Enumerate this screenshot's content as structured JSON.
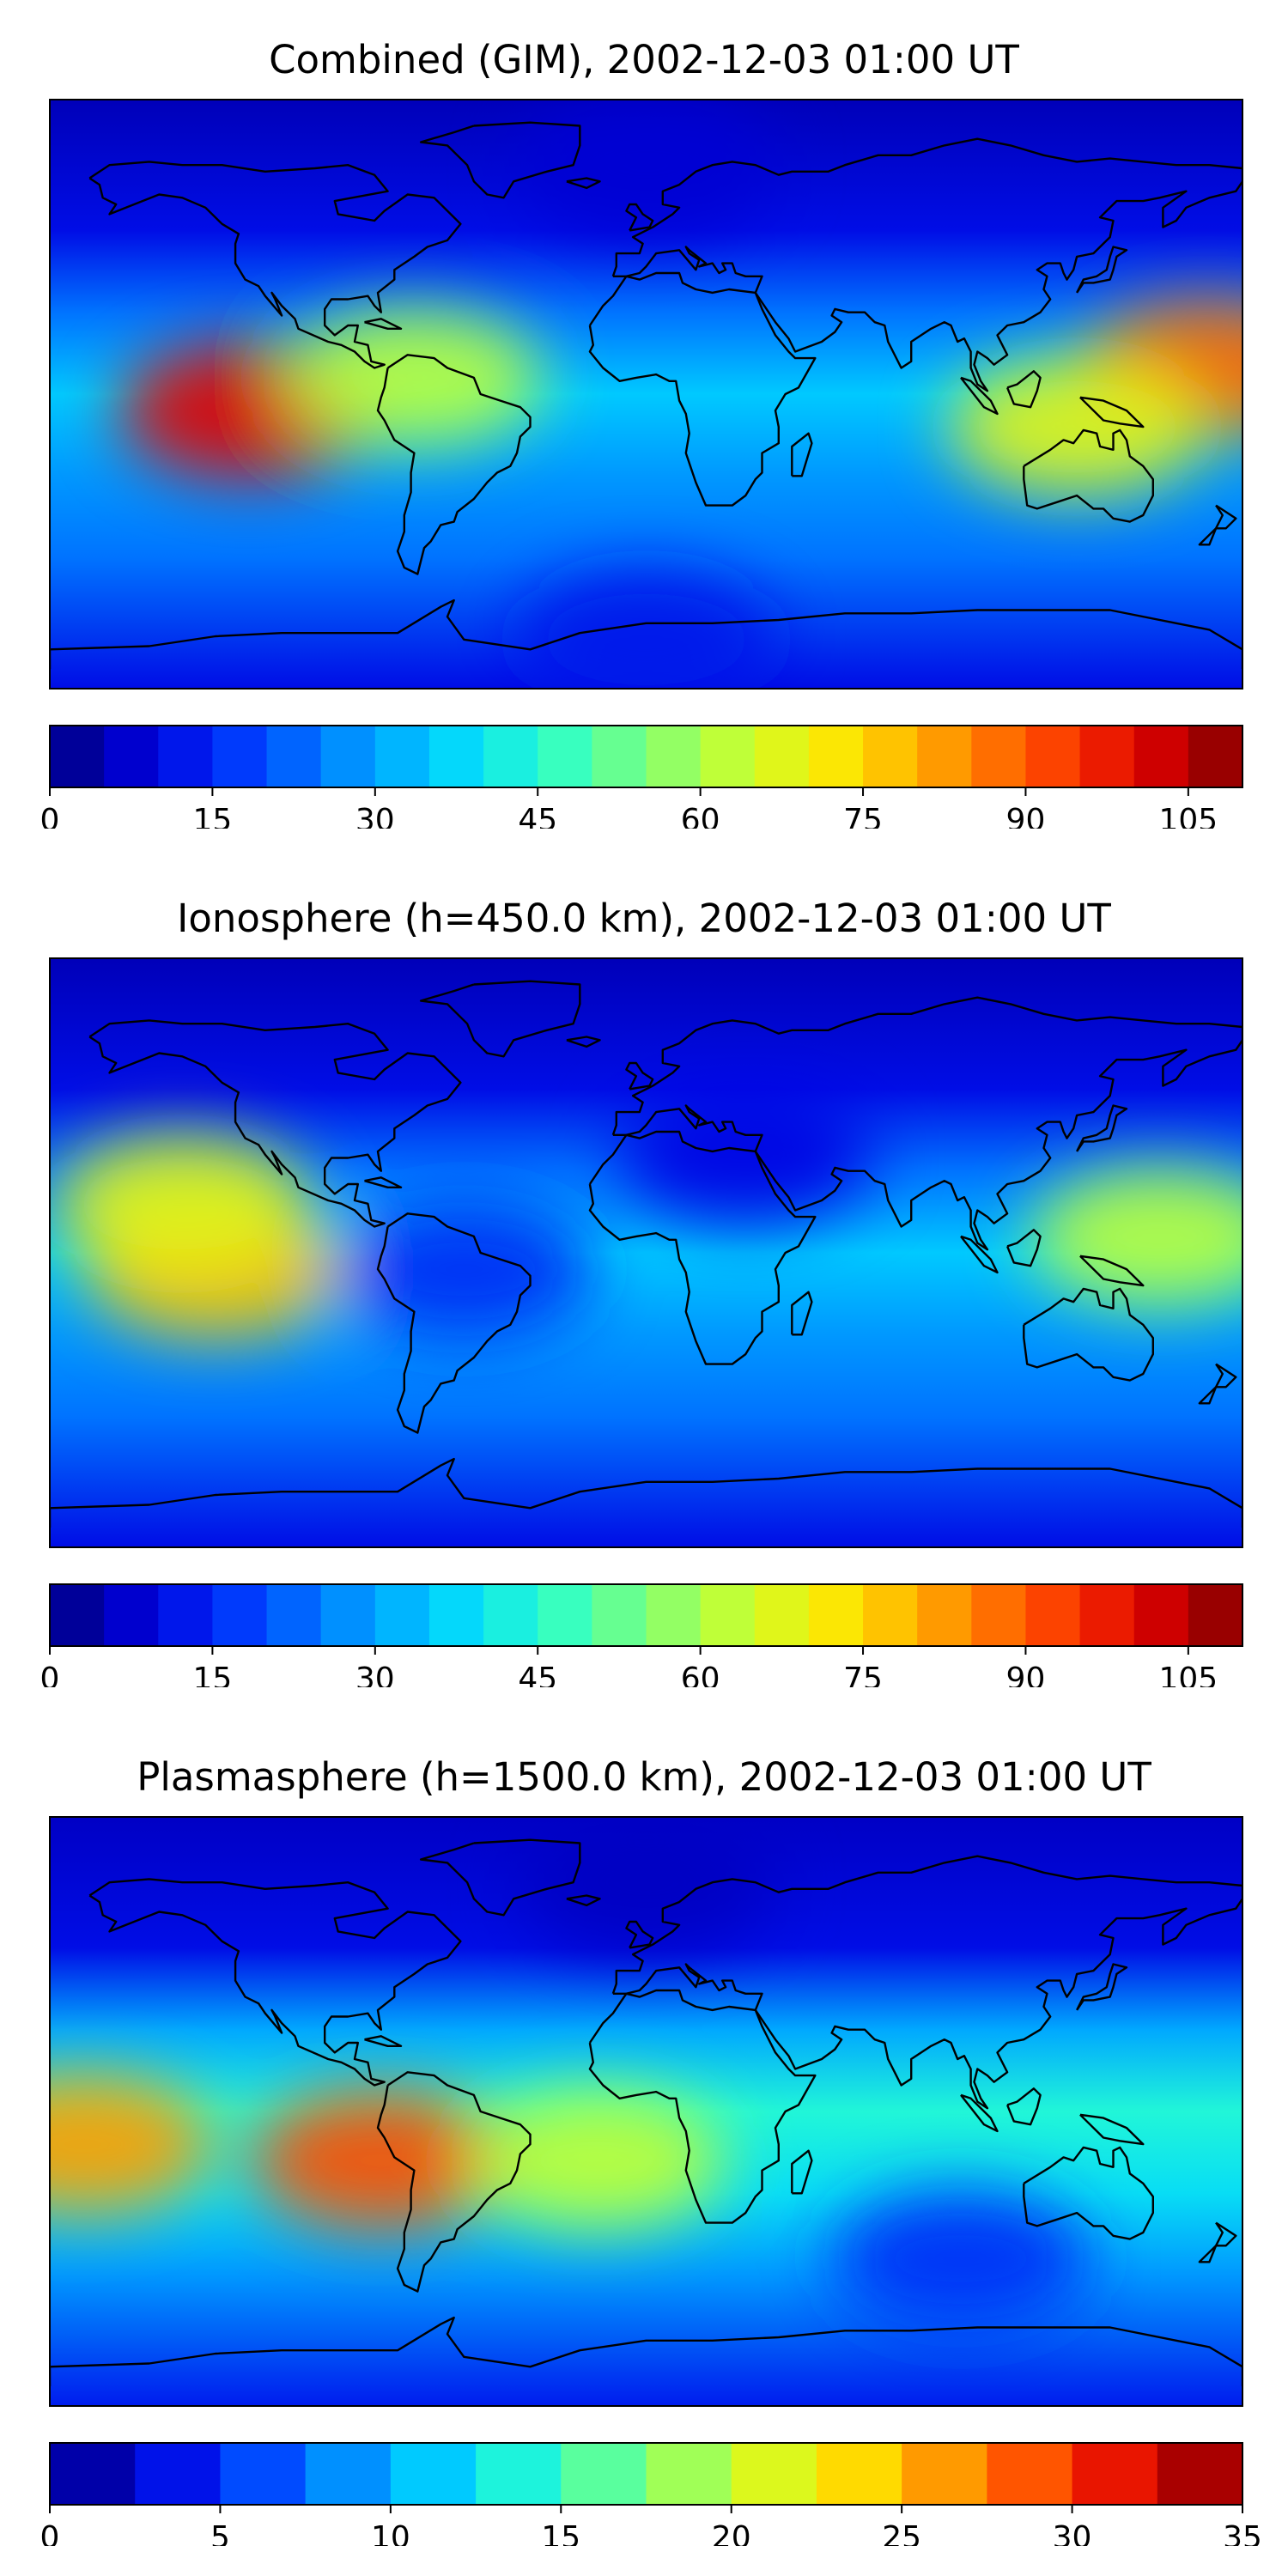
{
  "colors": {
    "jet": [
      "#00007f",
      "#0000e0",
      "#0040ff",
      "#0090ff",
      "#00d4ff",
      "#29ffce",
      "#7dff7a",
      "#ceff29",
      "#ffe500",
      "#ff9a00",
      "#ff4a00",
      "#e00000",
      "#7f0000"
    ],
    "coastline": "#000000",
    "frame": "#000000"
  },
  "chart_data": [
    {
      "type": "heatmap",
      "title": "Combined (GIM), 2002-12-03 01:00 UT",
      "projection": "equirectangular world map with coastlines",
      "colorbar": {
        "range": [
          0,
          110
        ],
        "levels": 22,
        "ticks": [
          "0",
          "15",
          "30",
          "45",
          "60",
          "75",
          "90",
          "105"
        ],
        "tick_values": [
          0,
          15,
          30,
          45,
          60,
          75,
          90,
          105
        ]
      },
      "field_features": [
        {
          "region": "central Pacific, south of equator",
          "lon": -120,
          "lat": -5,
          "value": 100
        },
        {
          "region": "western Pacific, east of Philippines",
          "lon": 170,
          "lat": 8,
          "value": 88
        },
        {
          "region": "northern South America / Caribbean",
          "lon": -70,
          "lat": 5,
          "value": 62
        },
        {
          "region": "Indonesia / northern Australia",
          "lon": 130,
          "lat": -10,
          "value": 68
        },
        {
          "region": "north polar region",
          "lon": 0,
          "lat": 70,
          "value": 8
        },
        {
          "region": "Antarctica",
          "lon": 0,
          "lat": -75,
          "value": 12
        }
      ]
    },
    {
      "type": "heatmap",
      "title": "Ionosphere  (h=450.0 km), 2002-12-03 01:00 UT",
      "projection": "equirectangular world map with coastlines",
      "colorbar": {
        "range": [
          0,
          110
        ],
        "levels": 22,
        "ticks": [
          "0",
          "15",
          "30",
          "45",
          "60",
          "75",
          "90",
          "105"
        ],
        "tick_values": [
          0,
          15,
          30,
          45,
          60,
          75,
          90,
          105
        ]
      },
      "field_features": [
        {
          "region": "central Pacific, south of equator",
          "lon": -130,
          "lat": -5,
          "value": 78
        },
        {
          "region": "central Pacific, north of equator",
          "lon": -140,
          "lat": 15,
          "value": 68
        },
        {
          "region": "western Pacific / Indonesia",
          "lon": 155,
          "lat": 5,
          "value": 62
        },
        {
          "region": "Brazil (low)",
          "lon": -55,
          "lat": -5,
          "value": 15
        },
        {
          "region": "Africa and Eurasia",
          "lon": 30,
          "lat": 30,
          "value": 10
        }
      ]
    },
    {
      "type": "heatmap",
      "title": "Plasmasphere (h=1500.0 km), 2002-12-03 01:00 UT",
      "projection": "equirectangular world map with coastlines",
      "colorbar": {
        "range": [
          0,
          35
        ],
        "levels": 14,
        "ticks": [
          "0",
          "5",
          "10",
          "15",
          "20",
          "25",
          "30",
          "35"
        ],
        "tick_values": [
          0,
          5,
          10,
          15,
          20,
          25,
          30,
          35
        ]
      },
      "field_features": [
        {
          "region": "eastern Pacific / western South America",
          "lon": -80,
          "lat": -15,
          "value": 29
        },
        {
          "region": "central Pacific",
          "lon": -170,
          "lat": -10,
          "value": 26
        },
        {
          "region": "Atlantic off Africa",
          "lon": -15,
          "lat": -15,
          "value": 20
        },
        {
          "region": "north polar region",
          "lon": 0,
          "lat": 70,
          "value": 2
        },
        {
          "region": "southern Indian Ocean (low)",
          "lon": 95,
          "lat": -45,
          "value": 5
        }
      ]
    }
  ]
}
